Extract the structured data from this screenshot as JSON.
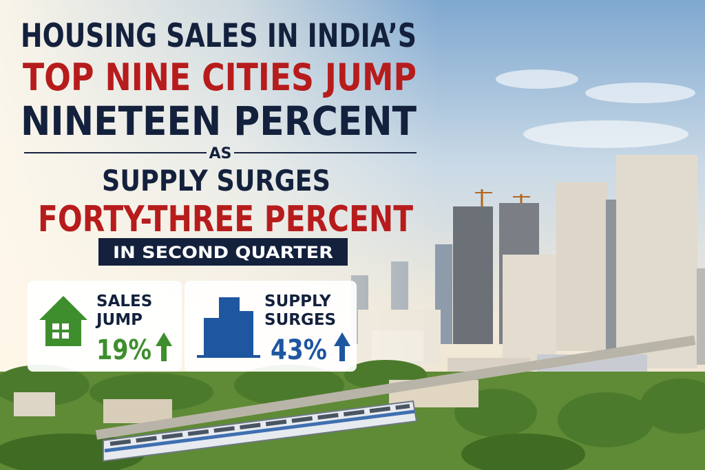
{
  "headline": {
    "line1": "HOUSING SALES IN INDIA’S",
    "line2": "TOP NINE CITIES JUMP",
    "line3": "NINETEEN PERCENT",
    "connector": "AS",
    "line4": "SUPPLY SURGES",
    "line5": "FORTY-THREE PERCENT",
    "tag": "IN SECOND QUARTER"
  },
  "cards": [
    {
      "label_line1": "SALES",
      "label_line2": "JUMP",
      "value": "19%"
    },
    {
      "label_line1": "SUPPLY",
      "label_line2": "SURGES",
      "value": "43%"
    }
  ]
}
